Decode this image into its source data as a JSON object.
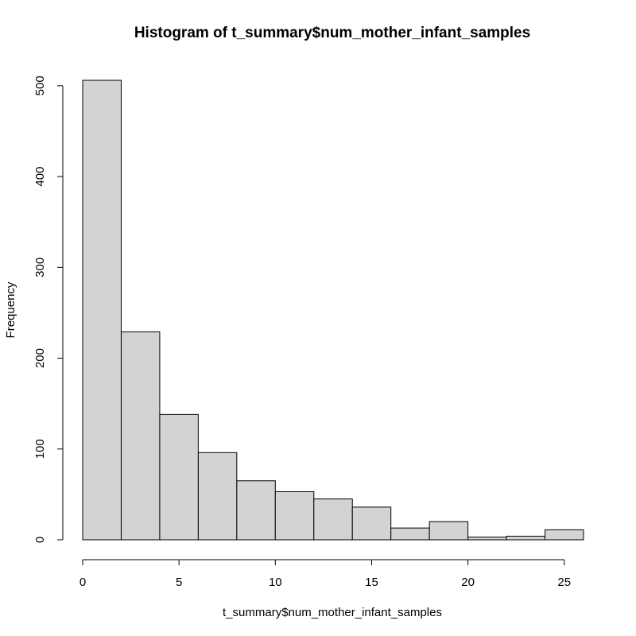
{
  "chart_data": {
    "type": "bar",
    "title": "Histogram of t_summary$num_mother_infant_samples",
    "xlabel": "t_summary$num_mother_infant_samples",
    "ylabel": "Frequency",
    "bins": [
      {
        "start": 0,
        "end": 2,
        "value": 506
      },
      {
        "start": 2,
        "end": 4,
        "value": 229
      },
      {
        "start": 4,
        "end": 6,
        "value": 138
      },
      {
        "start": 6,
        "end": 8,
        "value": 96
      },
      {
        "start": 8,
        "end": 10,
        "value": 65
      },
      {
        "start": 10,
        "end": 12,
        "value": 53
      },
      {
        "start": 12,
        "end": 14,
        "value": 45
      },
      {
        "start": 14,
        "end": 16,
        "value": 36
      },
      {
        "start": 16,
        "end": 18,
        "value": 13
      },
      {
        "start": 18,
        "end": 20,
        "value": 20
      },
      {
        "start": 20,
        "end": 22,
        "value": 3
      },
      {
        "start": 22,
        "end": 24,
        "value": 4
      },
      {
        "start": 24,
        "end": 26,
        "value": 11
      }
    ],
    "xlim": [
      0,
      26
    ],
    "ylim": [
      0,
      506
    ],
    "x_ticks": [
      "0",
      "5",
      "10",
      "15",
      "20",
      "25"
    ],
    "y_ticks": [
      "0",
      "100",
      "200",
      "300",
      "400",
      "500"
    ],
    "grid": false,
    "bar_fill": "#d3d3d3",
    "bar_stroke": "#000000"
  }
}
